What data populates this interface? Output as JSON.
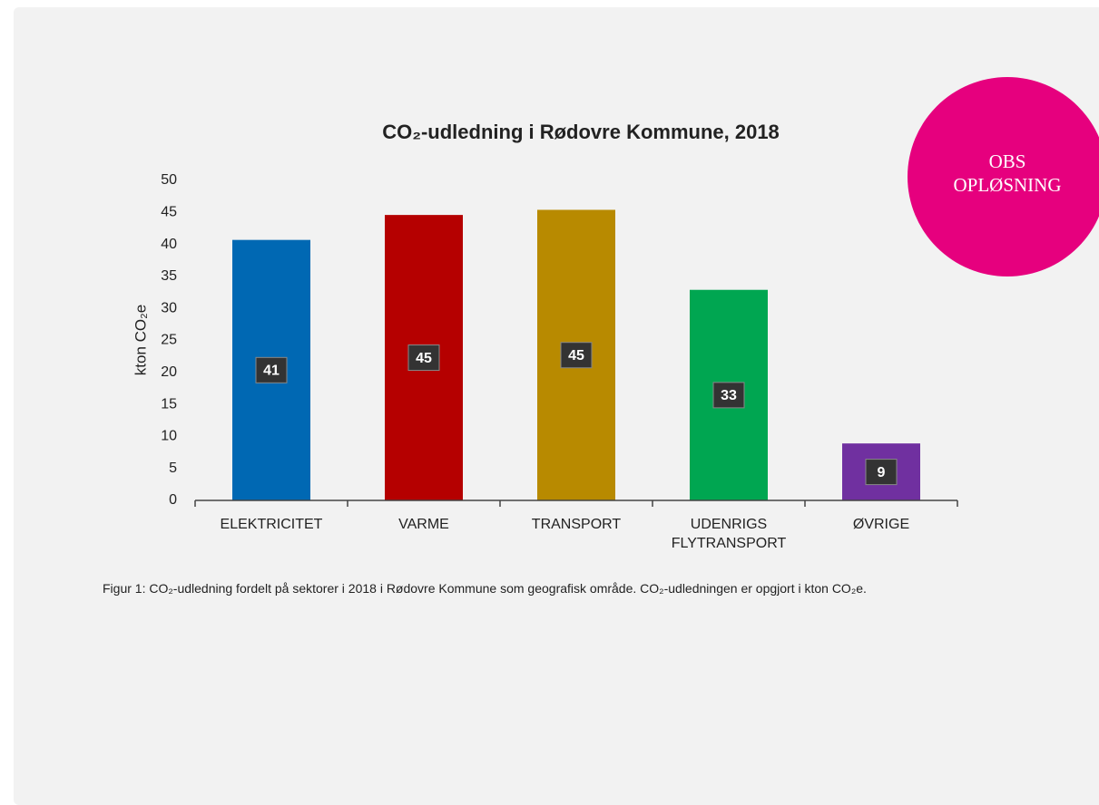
{
  "chart_data": {
    "type": "bar",
    "title": "CO₂-udledning i Rødovre Kommune, 2018",
    "y_label": "kton CO₂e",
    "categories": [
      "ELEKTRICITET",
      "VARME",
      "TRANSPORT",
      "UDENRIGS FLYTRANSPORT",
      "ØVRIGE"
    ],
    "values": [
      40.7,
      44.6,
      45.4,
      32.9,
      8.9
    ],
    "value_labels": [
      "41",
      "45",
      "45",
      "33",
      "9"
    ],
    "colors": [
      "#0068b3",
      "#b50000",
      "#b88a00",
      "#00a651",
      "#7030a0"
    ],
    "ylim": [
      0,
      50
    ],
    "yticks": [
      0,
      5,
      10,
      15,
      20,
      25,
      30,
      35,
      40,
      45,
      50
    ],
    "grid": false
  },
  "caption": "Figur 1: CO₂-udledning fordelt på sektorer i 2018 i Rødovre Kommune som geografisk område. CO₂-udledningen er opgjort i kton CO₂e.",
  "badge": {
    "line1": "OBS",
    "line2": "OPLØSNING"
  }
}
